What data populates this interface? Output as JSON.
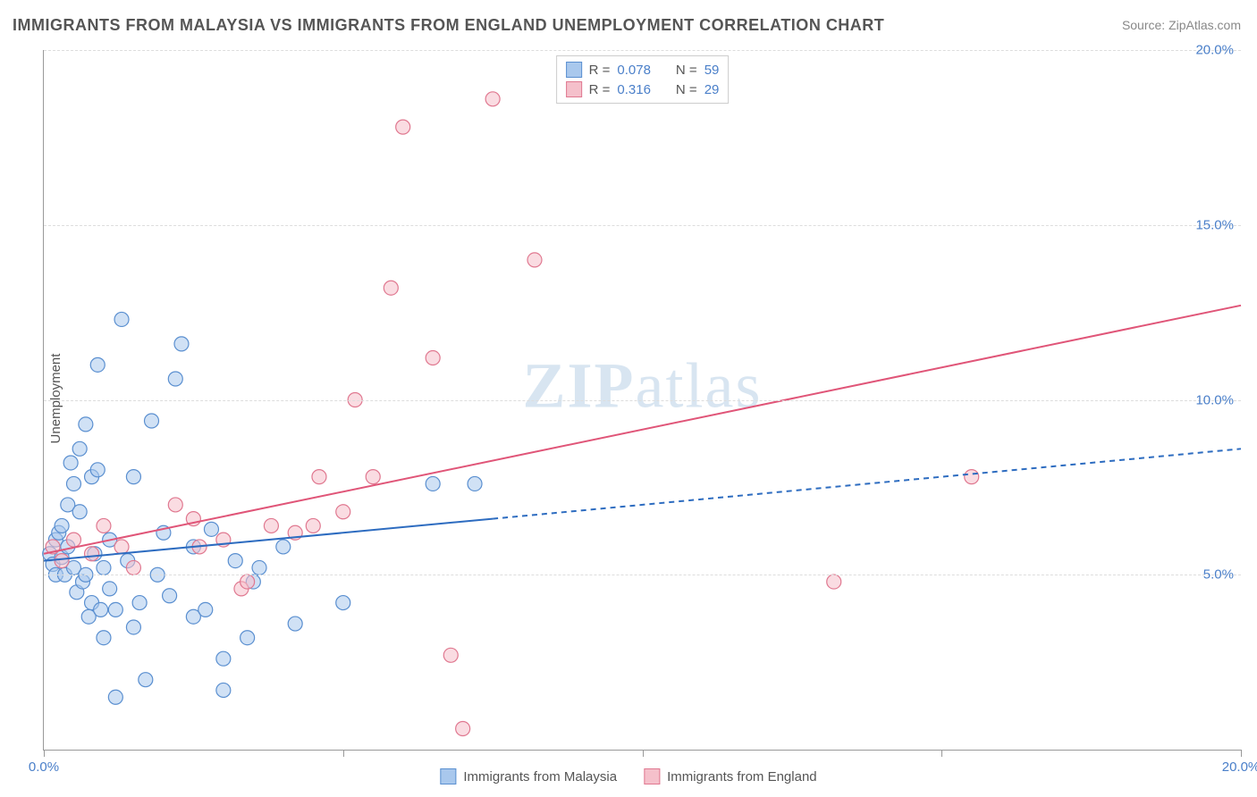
{
  "title": "IMMIGRANTS FROM MALAYSIA VS IMMIGRANTS FROM ENGLAND UNEMPLOYMENT CORRELATION CHART",
  "source": "Source: ZipAtlas.com",
  "y_axis_label": "Unemployment",
  "watermark": {
    "bold": "ZIP",
    "light": "atlas"
  },
  "chart": {
    "type": "scatter",
    "xlim": [
      0,
      20
    ],
    "ylim": [
      0,
      20
    ],
    "y_ticks": [
      5,
      10,
      15,
      20
    ],
    "y_tick_labels": [
      "5.0%",
      "10.0%",
      "15.0%",
      "20.0%"
    ],
    "x_ticks": [
      0,
      5,
      10,
      15,
      20
    ],
    "x_tick_labels_shown": {
      "first": "0.0%",
      "last": "20.0%"
    },
    "grid_color": "#dddddd",
    "axis_color": "#999999",
    "background_color": "#ffffff",
    "point_radius": 8,
    "point_opacity": 0.55,
    "series": [
      {
        "name": "Immigrants from Malaysia",
        "color_fill": "#a9c8ed",
        "color_stroke": "#5a8fd0",
        "R": "0.078",
        "N": "59",
        "trend": {
          "x1": 0,
          "y1": 5.4,
          "x2": 20,
          "y2": 8.6,
          "solid_until_x": 7.5,
          "dash": "6,5",
          "stroke": "#2d6cc0",
          "width": 2
        },
        "points": [
          [
            0.1,
            5.6
          ],
          [
            0.15,
            5.3
          ],
          [
            0.2,
            6.0
          ],
          [
            0.2,
            5.0
          ],
          [
            0.25,
            6.2
          ],
          [
            0.3,
            5.5
          ],
          [
            0.3,
            6.4
          ],
          [
            0.35,
            5.0
          ],
          [
            0.4,
            7.0
          ],
          [
            0.4,
            5.8
          ],
          [
            0.45,
            8.2
          ],
          [
            0.5,
            7.6
          ],
          [
            0.5,
            5.2
          ],
          [
            0.55,
            4.5
          ],
          [
            0.6,
            8.6
          ],
          [
            0.6,
            6.8
          ],
          [
            0.65,
            4.8
          ],
          [
            0.7,
            9.3
          ],
          [
            0.7,
            5.0
          ],
          [
            0.75,
            3.8
          ],
          [
            0.8,
            7.8
          ],
          [
            0.8,
            4.2
          ],
          [
            0.85,
            5.6
          ],
          [
            0.9,
            8.0
          ],
          [
            0.9,
            11.0
          ],
          [
            0.95,
            4.0
          ],
          [
            1.0,
            5.2
          ],
          [
            1.0,
            3.2
          ],
          [
            1.1,
            6.0
          ],
          [
            1.1,
            4.6
          ],
          [
            1.2,
            4.0
          ],
          [
            1.2,
            1.5
          ],
          [
            1.3,
            12.3
          ],
          [
            1.4,
            5.4
          ],
          [
            1.5,
            7.8
          ],
          [
            1.5,
            3.5
          ],
          [
            1.6,
            4.2
          ],
          [
            1.7,
            2.0
          ],
          [
            1.8,
            9.4
          ],
          [
            1.9,
            5.0
          ],
          [
            2.0,
            6.2
          ],
          [
            2.1,
            4.4
          ],
          [
            2.2,
            10.6
          ],
          [
            2.3,
            11.6
          ],
          [
            2.5,
            5.8
          ],
          [
            2.5,
            3.8
          ],
          [
            2.7,
            4.0
          ],
          [
            2.8,
            6.3
          ],
          [
            3.0,
            2.6
          ],
          [
            3.0,
            1.7
          ],
          [
            3.2,
            5.4
          ],
          [
            3.4,
            3.2
          ],
          [
            3.5,
            4.8
          ],
          [
            3.6,
            5.2
          ],
          [
            4.0,
            5.8
          ],
          [
            4.2,
            3.6
          ],
          [
            5.0,
            4.2
          ],
          [
            6.5,
            7.6
          ],
          [
            7.2,
            7.6
          ]
        ]
      },
      {
        "name": "Immigrants from England",
        "color_fill": "#f5c0cb",
        "color_stroke": "#e07890",
        "R": "0.316",
        "N": "29",
        "trend": {
          "x1": 0,
          "y1": 5.6,
          "x2": 20,
          "y2": 12.7,
          "solid_until_x": 20,
          "stroke": "#e05578",
          "width": 2
        },
        "points": [
          [
            0.15,
            5.8
          ],
          [
            0.3,
            5.4
          ],
          [
            0.5,
            6.0
          ],
          [
            0.8,
            5.6
          ],
          [
            1.0,
            6.4
          ],
          [
            1.3,
            5.8
          ],
          [
            1.5,
            5.2
          ],
          [
            2.2,
            7.0
          ],
          [
            2.5,
            6.6
          ],
          [
            2.6,
            5.8
          ],
          [
            3.0,
            6.0
          ],
          [
            3.3,
            4.6
          ],
          [
            3.4,
            4.8
          ],
          [
            3.8,
            6.4
          ],
          [
            4.2,
            6.2
          ],
          [
            4.5,
            6.4
          ],
          [
            4.6,
            7.8
          ],
          [
            5.0,
            6.8
          ],
          [
            5.2,
            10.0
          ],
          [
            5.5,
            7.8
          ],
          [
            5.8,
            13.2
          ],
          [
            6.0,
            17.8
          ],
          [
            6.5,
            11.2
          ],
          [
            6.8,
            2.7
          ],
          [
            7.0,
            0.6
          ],
          [
            7.5,
            18.6
          ],
          [
            8.2,
            14.0
          ],
          [
            13.2,
            4.8
          ],
          [
            15.5,
            7.8
          ]
        ]
      }
    ]
  },
  "legend_box": {
    "rows": [
      {
        "swatch": 0,
        "r_label": "R = ",
        "r_val": "0.078",
        "n_label": "N = ",
        "n_val": "59"
      },
      {
        "swatch": 1,
        "r_label": "R = ",
        "r_val": "0.316",
        "n_label": "N = ",
        "n_val": "29"
      }
    ]
  },
  "bottom_legend": [
    {
      "swatch": 0,
      "label": "Immigrants from Malaysia"
    },
    {
      "swatch": 1,
      "label": "Immigrants from England"
    }
  ]
}
